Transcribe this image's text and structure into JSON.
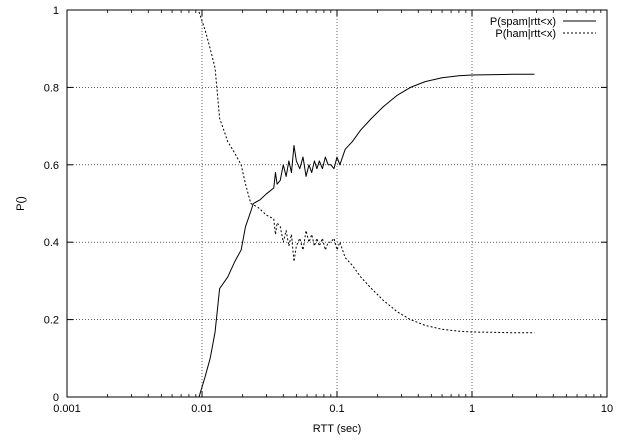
{
  "chart_data": {
    "type": "line",
    "title": "",
    "xlabel": "RTT (sec)",
    "ylabel": "P()",
    "x_scale": "log",
    "xlim": [
      0.001,
      10
    ],
    "ylim": [
      0,
      1
    ],
    "grid": true,
    "legend_position": "top-right",
    "x_ticks": [
      0.001,
      0.01,
      0.1,
      1,
      10
    ],
    "x_tick_labels": [
      "0.001",
      "0.01",
      "0.1",
      "1",
      "10"
    ],
    "y_ticks": [
      0,
      0.2,
      0.4,
      0.6,
      0.8,
      1
    ],
    "y_tick_labels": [
      "0",
      "0.2",
      "0.4",
      "0.6",
      "0.8",
      "1"
    ],
    "series": [
      {
        "name": "P(spam|rtt<x)",
        "style": "solid",
        "points": [
          [
            0.0095,
            0
          ],
          [
            0.0105,
            0.05
          ],
          [
            0.0115,
            0.1
          ],
          [
            0.0125,
            0.168
          ],
          [
            0.0135,
            0.28
          ],
          [
            0.0155,
            0.31
          ],
          [
            0.0175,
            0.35
          ],
          [
            0.0195,
            0.38
          ],
          [
            0.021,
            0.44
          ],
          [
            0.023,
            0.48
          ],
          [
            0.024,
            0.5
          ],
          [
            0.027,
            0.51
          ],
          [
            0.03,
            0.525
          ],
          [
            0.034,
            0.54
          ],
          [
            0.035,
            0.58
          ],
          [
            0.036,
            0.55
          ],
          [
            0.038,
            0.56
          ],
          [
            0.04,
            0.6
          ],
          [
            0.042,
            0.57
          ],
          [
            0.044,
            0.61
          ],
          [
            0.046,
            0.58
          ],
          [
            0.048,
            0.65
          ],
          [
            0.05,
            0.61
          ],
          [
            0.053,
            0.59
          ],
          [
            0.056,
            0.62
          ],
          [
            0.059,
            0.57
          ],
          [
            0.062,
            0.6
          ],
          [
            0.065,
            0.58
          ],
          [
            0.068,
            0.61
          ],
          [
            0.071,
            0.59
          ],
          [
            0.074,
            0.61
          ],
          [
            0.078,
            0.59
          ],
          [
            0.082,
            0.62
          ],
          [
            0.086,
            0.6
          ],
          [
            0.09,
            0.6
          ],
          [
            0.095,
            0.59
          ],
          [
            0.1,
            0.62
          ],
          [
            0.105,
            0.6
          ],
          [
            0.115,
            0.64
          ],
          [
            0.13,
            0.66
          ],
          [
            0.15,
            0.69
          ],
          [
            0.18,
            0.72
          ],
          [
            0.22,
            0.75
          ],
          [
            0.28,
            0.78
          ],
          [
            0.35,
            0.8
          ],
          [
            0.45,
            0.815
          ],
          [
            0.6,
            0.825
          ],
          [
            0.8,
            0.83
          ],
          [
            1.0,
            0.832
          ],
          [
            1.5,
            0.833
          ],
          [
            2.0,
            0.834
          ],
          [
            2.9,
            0.834
          ]
        ]
      },
      {
        "name": "P(ham|rtt<x)",
        "style": "dotted",
        "points": [
          [
            0.0095,
            0.995
          ],
          [
            0.0105,
            0.95
          ],
          [
            0.0115,
            0.9
          ],
          [
            0.0125,
            0.85
          ],
          [
            0.0135,
            0.72
          ],
          [
            0.0145,
            0.69
          ],
          [
            0.0155,
            0.66
          ],
          [
            0.0175,
            0.63
          ],
          [
            0.0195,
            0.6
          ],
          [
            0.021,
            0.55
          ],
          [
            0.023,
            0.5
          ],
          [
            0.026,
            0.49
          ],
          [
            0.03,
            0.47
          ],
          [
            0.034,
            0.46
          ],
          [
            0.035,
            0.42
          ],
          [
            0.036,
            0.45
          ],
          [
            0.038,
            0.44
          ],
          [
            0.04,
            0.4
          ],
          [
            0.042,
            0.43
          ],
          [
            0.044,
            0.39
          ],
          [
            0.046,
            0.42
          ],
          [
            0.048,
            0.35
          ],
          [
            0.05,
            0.39
          ],
          [
            0.053,
            0.41
          ],
          [
            0.056,
            0.38
          ],
          [
            0.059,
            0.43
          ],
          [
            0.062,
            0.4
          ],
          [
            0.065,
            0.42
          ],
          [
            0.068,
            0.39
          ],
          [
            0.071,
            0.41
          ],
          [
            0.074,
            0.39
          ],
          [
            0.078,
            0.41
          ],
          [
            0.082,
            0.38
          ],
          [
            0.086,
            0.4
          ],
          [
            0.09,
            0.4
          ],
          [
            0.095,
            0.41
          ],
          [
            0.1,
            0.38
          ],
          [
            0.105,
            0.4
          ],
          [
            0.115,
            0.36
          ],
          [
            0.13,
            0.34
          ],
          [
            0.15,
            0.31
          ],
          [
            0.18,
            0.28
          ],
          [
            0.22,
            0.25
          ],
          [
            0.28,
            0.22
          ],
          [
            0.35,
            0.2
          ],
          [
            0.45,
            0.185
          ],
          [
            0.6,
            0.175
          ],
          [
            0.8,
            0.17
          ],
          [
            1.0,
            0.168
          ],
          [
            1.5,
            0.167
          ],
          [
            2.0,
            0.166
          ],
          [
            2.9,
            0.166
          ]
        ]
      }
    ]
  }
}
